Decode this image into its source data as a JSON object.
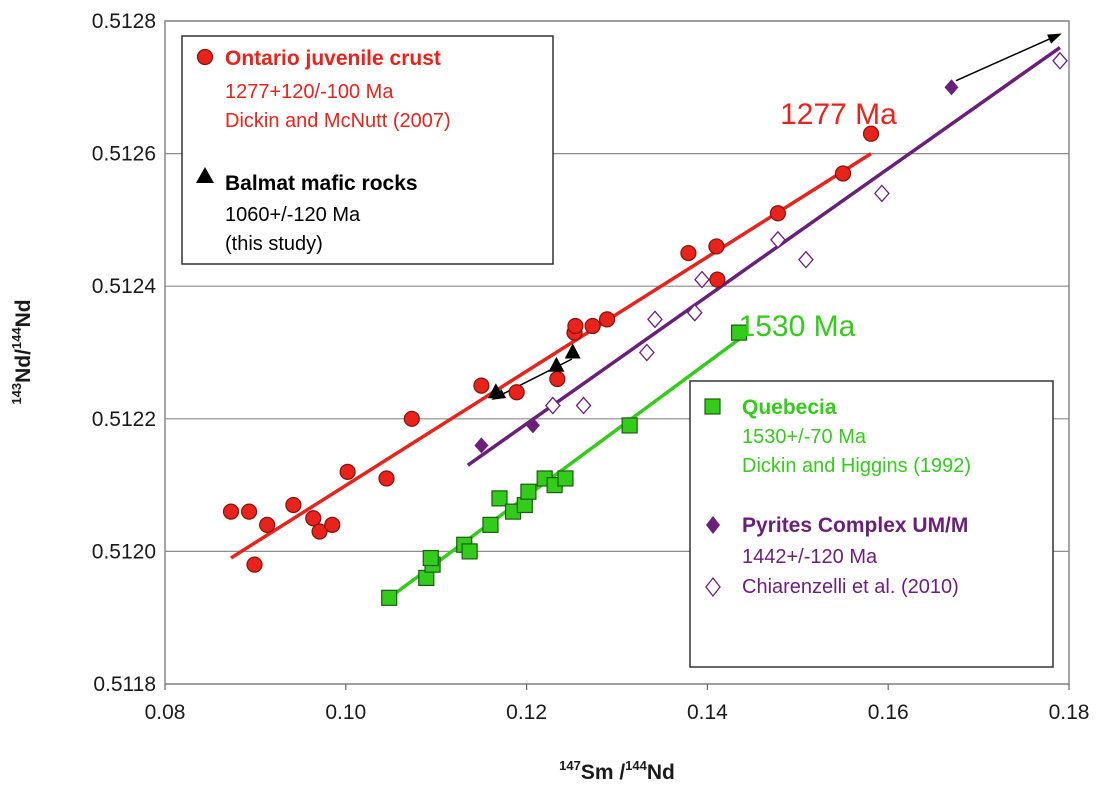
{
  "chart_data": {
    "type": "scatter",
    "xlabel": {
      "sup1": "147",
      "main1": "Sm /",
      "sup2": "144",
      "main2": "Nd"
    },
    "ylabel": {
      "sup1": "143",
      "main1": "Nd/",
      "sup2": "144",
      "main2": "Nd"
    },
    "xlim": [
      0.08,
      0.18
    ],
    "ylim": [
      0.5118,
      0.5128
    ],
    "x_ticks": [
      "0.08",
      "0.10",
      "0.12",
      "0.14",
      "0.16",
      "0.18"
    ],
    "y_ticks": [
      "0.5118",
      "0.5120",
      "0.5122",
      "0.5124",
      "0.5126",
      "0.5128"
    ],
    "grid": "horizontal",
    "colors": {
      "ontario": "#e8231c",
      "quebecia": "#33cc1a",
      "pyrites": "#6a1f7a",
      "balmat": "#000000"
    },
    "series": [
      {
        "key": "ontario",
        "marker": "circle",
        "points": [
          [
            0.0873,
            0.51206
          ],
          [
            0.0893,
            0.51206
          ],
          [
            0.0913,
            0.51204
          ],
          [
            0.0899,
            0.51198
          ],
          [
            0.0942,
            0.51207
          ],
          [
            0.0964,
            0.51205
          ],
          [
            0.0971,
            0.51203
          ],
          [
            0.0985,
            0.51204
          ],
          [
            0.1002,
            0.51212
          ],
          [
            0.1045,
            0.51211
          ],
          [
            0.1073,
            0.5122
          ],
          [
            0.115,
            0.51225
          ],
          [
            0.1189,
            0.51224
          ],
          [
            0.1234,
            0.51226
          ],
          [
            0.1253,
            0.51233
          ],
          [
            0.1254,
            0.51234
          ],
          [
            0.1273,
            0.51234
          ],
          [
            0.1289,
            0.51235
          ],
          [
            0.1379,
            0.51245
          ],
          [
            0.141,
            0.51246
          ],
          [
            0.1411,
            0.51241
          ],
          [
            0.1478,
            0.51251
          ],
          [
            0.155,
            0.51257
          ],
          [
            0.1581,
            0.51263
          ]
        ],
        "regression": [
          [
            0.0873,
            0.51199
          ],
          [
            0.1581,
            0.5126
          ]
        ]
      },
      {
        "key": "quebecia",
        "marker": "square",
        "points": [
          [
            0.1048,
            0.51193
          ],
          [
            0.1089,
            0.51196
          ],
          [
            0.1096,
            0.51198
          ],
          [
            0.1094,
            0.51199
          ],
          [
            0.1131,
            0.51201
          ],
          [
            0.1137,
            0.512
          ],
          [
            0.116,
            0.51204
          ],
          [
            0.117,
            0.51208
          ],
          [
            0.1185,
            0.51206
          ],
          [
            0.1198,
            0.51207
          ],
          [
            0.1202,
            0.51209
          ],
          [
            0.122,
            0.51211
          ],
          [
            0.1231,
            0.5121
          ],
          [
            0.1243,
            0.51211
          ],
          [
            0.1314,
            0.51219
          ],
          [
            0.1435,
            0.51233
          ]
        ],
        "regression": [
          [
            0.1048,
            0.51193
          ],
          [
            0.1435,
            0.51232
          ]
        ]
      },
      {
        "key": "pyrites_filled",
        "marker": "diamond-filled",
        "points": [
          [
            0.115,
            0.51216
          ],
          [
            0.1207,
            0.51219
          ],
          [
            0.167,
            0.5127
          ]
        ],
        "regression": [
          [
            0.1135,
            0.51213
          ],
          [
            0.179,
            0.51276
          ]
        ]
      },
      {
        "key": "pyrites_open",
        "marker": "diamond-open",
        "points": [
          [
            0.1229,
            0.51222
          ],
          [
            0.1263,
            0.51222
          ],
          [
            0.1333,
            0.5123
          ],
          [
            0.1342,
            0.51235
          ],
          [
            0.1386,
            0.51236
          ],
          [
            0.1394,
            0.51241
          ],
          [
            0.1478,
            0.51247
          ],
          [
            0.1509,
            0.51244
          ],
          [
            0.1593,
            0.51254
          ],
          [
            0.179,
            0.51274
          ]
        ]
      },
      {
        "key": "balmat",
        "marker": "triangle",
        "points": [
          [
            0.1166,
            0.51224
          ],
          [
            0.1233,
            0.51228
          ],
          [
            0.1251,
            0.5123
          ]
        ]
      }
    ],
    "arrows": [
      {
        "from": [
          0.125,
          0.51229
        ],
        "to": [
          0.1163,
          0.51223
        ]
      },
      {
        "from": [
          0.1675,
          0.51271
        ],
        "to": [
          0.179,
          0.51278
        ]
      }
    ],
    "annotations": [
      {
        "text": "1277 Ma",
        "key": "ontario",
        "at": [
          0.1545,
          0.51266
        ]
      },
      {
        "text": "1530 Ma",
        "key": "quebecia",
        "at": [
          0.1499,
          0.51234
        ]
      }
    ],
    "legend_top_left": {
      "ontario_title": "Ontario juvenile crust",
      "ontario_line1": "1277+120/-100 Ma",
      "ontario_line2": "Dickin and McNutt (2007)",
      "balmat_title": "Balmat mafic rocks",
      "balmat_line1": "1060+/-120 Ma",
      "balmat_line2": "(this study)"
    },
    "legend_bottom_right": {
      "quebecia_title": "Quebecia",
      "quebecia_line1": "1530+/-70 Ma",
      "quebecia_line2": "Dickin and Higgins (1992)",
      "pyrites_title": "Pyrites Complex UM/M",
      "pyrites_line1": "1442+/-120 Ma",
      "pyrites_line2": "Chiarenzelli et al. (2010)"
    }
  }
}
